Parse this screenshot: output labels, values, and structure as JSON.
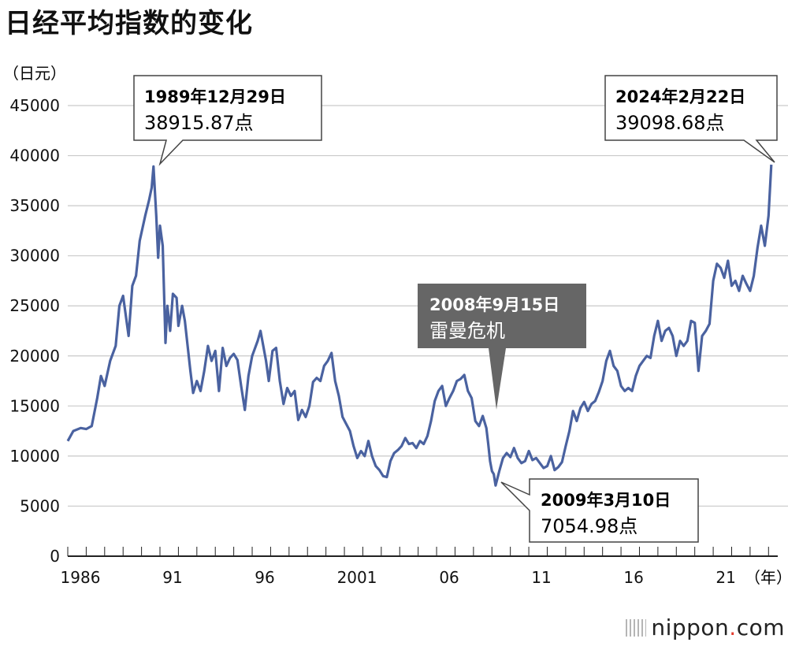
{
  "chart_data": {
    "type": "line",
    "title": "日经平均指数的变化",
    "ylabel": "（日元）",
    "xlabel": "（年）",
    "ylim": [
      0,
      45000
    ],
    "xlim": [
      1986,
      2024.5
    ],
    "y_ticks": [
      "0",
      "5000",
      "10000",
      "15000",
      "20000",
      "25000",
      "30000",
      "35000",
      "40000",
      "45000"
    ],
    "y_tick_values": [
      0,
      5000,
      10000,
      15000,
      20000,
      25000,
      30000,
      35000,
      40000,
      45000
    ],
    "x_ticks": [
      "1986",
      "91",
      "96",
      "2001",
      "06",
      "11",
      "16",
      "21"
    ],
    "x_tick_values": [
      1986,
      1991,
      1996,
      2001,
      2006,
      2011,
      2016,
      2021
    ],
    "series": [
      {
        "name": "日经平均指数",
        "color": "#4a62a0",
        "points": [
          [
            1986.0,
            11500
          ],
          [
            1986.3,
            12500
          ],
          [
            1986.7,
            12800
          ],
          [
            1987.0,
            12700
          ],
          [
            1987.3,
            13000
          ],
          [
            1987.6,
            15800
          ],
          [
            1987.8,
            18000
          ],
          [
            1988.0,
            17000
          ],
          [
            1988.3,
            19500
          ],
          [
            1988.6,
            21000
          ],
          [
            1988.8,
            25000
          ],
          [
            1989.0,
            26000
          ],
          [
            1989.3,
            22000
          ],
          [
            1989.5,
            27000
          ],
          [
            1989.7,
            28000
          ],
          [
            1989.9,
            31500
          ],
          [
            1990.2,
            34000
          ],
          [
            1990.4,
            35500
          ],
          [
            1990.55,
            36800
          ],
          [
            1990.65,
            38915.87
          ],
          [
            1990.8,
            34000
          ],
          [
            1990.9,
            29800
          ],
          [
            1991.0,
            33000
          ],
          [
            1991.15,
            31000
          ],
          [
            1991.3,
            21300
          ],
          [
            1991.4,
            25000
          ],
          [
            1991.55,
            22500
          ],
          [
            1991.7,
            26200
          ],
          [
            1991.9,
            25800
          ],
          [
            1992.0,
            23000
          ],
          [
            1992.2,
            25000
          ],
          [
            1992.35,
            23500
          ],
          [
            1992.5,
            21000
          ],
          [
            1992.65,
            18500
          ],
          [
            1992.8,
            16300
          ],
          [
            1993.0,
            17500
          ],
          [
            1993.2,
            16500
          ],
          [
            1993.4,
            18500
          ],
          [
            1993.6,
            21000
          ],
          [
            1993.8,
            19500
          ],
          [
            1994.0,
            20500
          ],
          [
            1994.2,
            16500
          ],
          [
            1994.4,
            20800
          ],
          [
            1994.6,
            19000
          ],
          [
            1994.8,
            19800
          ],
          [
            1995.0,
            20200
          ],
          [
            1995.2,
            19600
          ],
          [
            1995.4,
            17000
          ],
          [
            1995.6,
            14600
          ],
          [
            1995.8,
            18000
          ],
          [
            1996.0,
            20000
          ],
          [
            1996.3,
            21500
          ],
          [
            1996.45,
            22500
          ],
          [
            1996.6,
            21000
          ],
          [
            1996.75,
            19500
          ],
          [
            1996.9,
            17500
          ],
          [
            1997.1,
            20500
          ],
          [
            1997.3,
            20800
          ],
          [
            1997.5,
            17500
          ],
          [
            1997.7,
            15200
          ],
          [
            1997.9,
            16800
          ],
          [
            1998.1,
            16000
          ],
          [
            1998.3,
            16500
          ],
          [
            1998.5,
            13600
          ],
          [
            1998.7,
            14600
          ],
          [
            1998.9,
            13900
          ],
          [
            1999.1,
            15000
          ],
          [
            1999.3,
            17400
          ],
          [
            1999.5,
            17800
          ],
          [
            1999.7,
            17500
          ],
          [
            1999.9,
            19000
          ],
          [
            2000.1,
            19500
          ],
          [
            2000.3,
            20300
          ],
          [
            2000.5,
            17500
          ],
          [
            2000.7,
            16000
          ],
          [
            2000.9,
            13900
          ],
          [
            2001.1,
            13200
          ],
          [
            2001.3,
            12500
          ],
          [
            2001.5,
            11000
          ],
          [
            2001.7,
            9800
          ],
          [
            2001.9,
            10500
          ],
          [
            2002.1,
            10000
          ],
          [
            2002.3,
            11500
          ],
          [
            2002.5,
            10000
          ],
          [
            2002.7,
            9000
          ],
          [
            2002.9,
            8600
          ],
          [
            2003.1,
            8000
          ],
          [
            2003.3,
            7900
          ],
          [
            2003.5,
            9500
          ],
          [
            2003.7,
            10300
          ],
          [
            2003.9,
            10600
          ],
          [
            2004.1,
            11000
          ],
          [
            2004.3,
            11800
          ],
          [
            2004.5,
            11200
          ],
          [
            2004.7,
            11300
          ],
          [
            2004.9,
            10800
          ],
          [
            2005.1,
            11500
          ],
          [
            2005.3,
            11200
          ],
          [
            2005.5,
            12000
          ],
          [
            2005.7,
            13500
          ],
          [
            2005.9,
            15500
          ],
          [
            2006.1,
            16500
          ],
          [
            2006.3,
            17000
          ],
          [
            2006.5,
            15000
          ],
          [
            2006.7,
            15800
          ],
          [
            2006.9,
            16500
          ],
          [
            2007.1,
            17500
          ],
          [
            2007.3,
            17700
          ],
          [
            2007.5,
            18100
          ],
          [
            2007.7,
            16500
          ],
          [
            2007.9,
            15800
          ],
          [
            2008.1,
            13500
          ],
          [
            2008.3,
            13000
          ],
          [
            2008.5,
            14000
          ],
          [
            2008.7,
            12800
          ],
          [
            2008.8,
            11200
          ],
          [
            2008.9,
            9500
          ],
          [
            2009.0,
            8500
          ],
          [
            2009.1,
            8200
          ],
          [
            2009.2,
            7054.98
          ],
          [
            2009.4,
            8500
          ],
          [
            2009.6,
            9800
          ],
          [
            2009.8,
            10300
          ],
          [
            2010.0,
            9900
          ],
          [
            2010.2,
            10800
          ],
          [
            2010.4,
            9800
          ],
          [
            2010.6,
            9300
          ],
          [
            2010.8,
            9500
          ],
          [
            2011.0,
            10500
          ],
          [
            2011.2,
            9600
          ],
          [
            2011.4,
            9800
          ],
          [
            2011.6,
            9300
          ],
          [
            2011.8,
            8800
          ],
          [
            2012.0,
            9000
          ],
          [
            2012.2,
            10000
          ],
          [
            2012.4,
            8600
          ],
          [
            2012.6,
            8900
          ],
          [
            2012.8,
            9400
          ],
          [
            2013.0,
            11000
          ],
          [
            2013.2,
            12500
          ],
          [
            2013.4,
            14500
          ],
          [
            2013.6,
            13500
          ],
          [
            2013.8,
            14800
          ],
          [
            2014.0,
            15400
          ],
          [
            2014.2,
            14500
          ],
          [
            2014.4,
            15200
          ],
          [
            2014.6,
            15500
          ],
          [
            2014.8,
            16400
          ],
          [
            2015.0,
            17500
          ],
          [
            2015.2,
            19500
          ],
          [
            2015.4,
            20500
          ],
          [
            2015.6,
            19000
          ],
          [
            2015.8,
            18500
          ],
          [
            2016.0,
            17000
          ],
          [
            2016.2,
            16500
          ],
          [
            2016.4,
            16800
          ],
          [
            2016.6,
            16500
          ],
          [
            2016.8,
            18000
          ],
          [
            2017.0,
            19000
          ],
          [
            2017.2,
            19500
          ],
          [
            2017.4,
            20000
          ],
          [
            2017.6,
            19800
          ],
          [
            2017.8,
            22000
          ],
          [
            2018.0,
            23500
          ],
          [
            2018.2,
            21500
          ],
          [
            2018.4,
            22500
          ],
          [
            2018.6,
            22800
          ],
          [
            2018.8,
            22000
          ],
          [
            2019.0,
            20000
          ],
          [
            2019.2,
            21500
          ],
          [
            2019.4,
            21000
          ],
          [
            2019.6,
            21500
          ],
          [
            2019.8,
            23500
          ],
          [
            2020.0,
            23300
          ],
          [
            2020.2,
            18500
          ],
          [
            2020.4,
            22000
          ],
          [
            2020.6,
            22500
          ],
          [
            2020.8,
            23200
          ],
          [
            2021.0,
            27500
          ],
          [
            2021.2,
            29200
          ],
          [
            2021.4,
            28800
          ],
          [
            2021.6,
            27800
          ],
          [
            2021.8,
            29500
          ],
          [
            2022.0,
            27000
          ],
          [
            2022.2,
            27500
          ],
          [
            2022.4,
            26500
          ],
          [
            2022.6,
            28000
          ],
          [
            2022.8,
            27200
          ],
          [
            2023.0,
            26500
          ],
          [
            2023.2,
            28000
          ],
          [
            2023.4,
            30800
          ],
          [
            2023.6,
            33000
          ],
          [
            2023.8,
            31000
          ],
          [
            2024.0,
            34000
          ],
          [
            2024.15,
            39098.68
          ]
        ]
      }
    ],
    "annotations": [
      {
        "date": "1989年12月29日",
        "text": "38915.87点"
      },
      {
        "date": "2024年2月22日",
        "text": "39098.68点"
      },
      {
        "date": "2008年9月15日",
        "text": "雷曼危机"
      },
      {
        "date": "2009年3月10日",
        "text": "7054.98点"
      }
    ]
  },
  "branding": {
    "logo_main": "nippon",
    "logo_dot": ".",
    "logo_tld": "com"
  }
}
